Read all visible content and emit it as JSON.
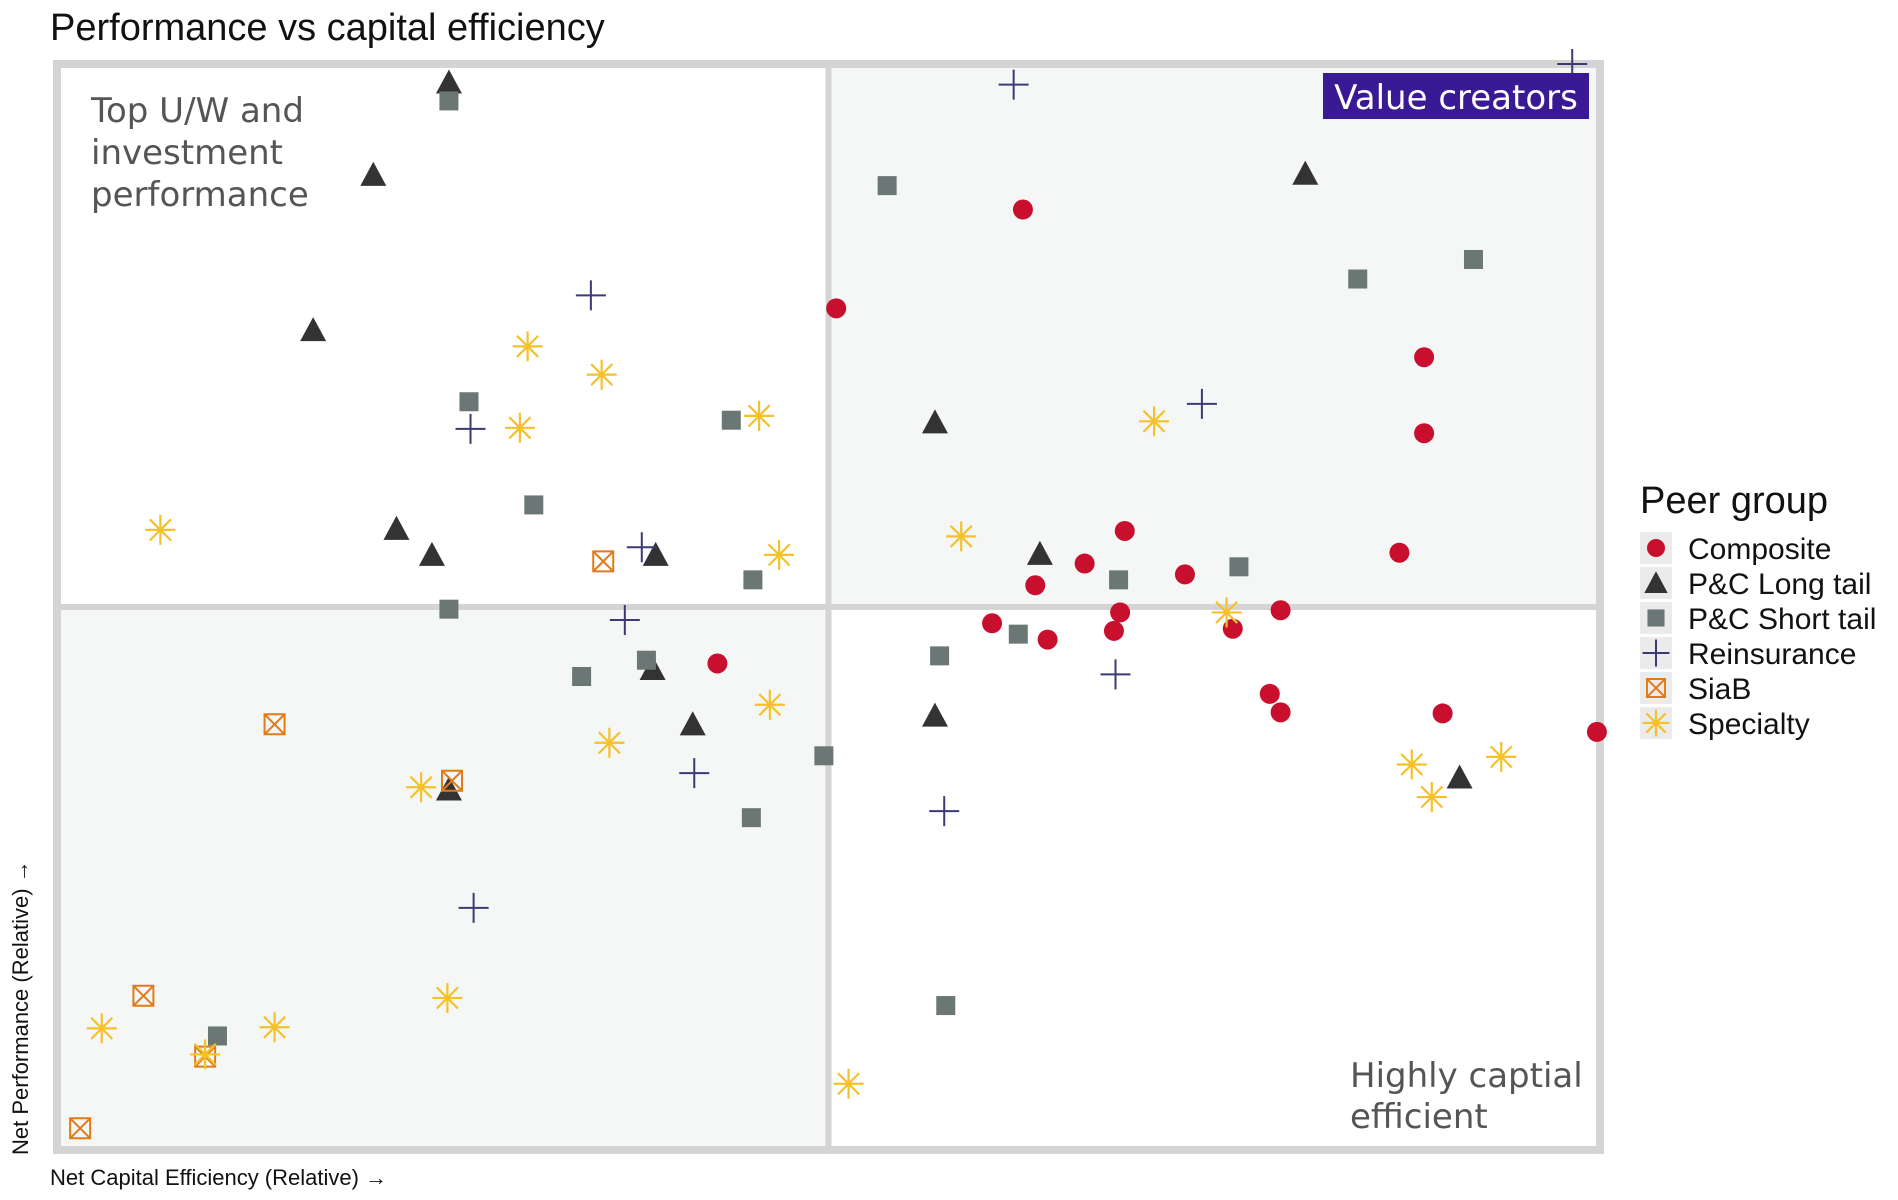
{
  "chart_data": {
    "type": "scatter",
    "title": "Performance vs capital efficiency",
    "xlabel": "Net Capital Efficiency (Relative) →",
    "ylabel": "Net Performance (Relative) →",
    "xlim": [
      0,
      100
    ],
    "ylim": [
      0,
      100
    ],
    "grid": false,
    "legend_position": "right",
    "legend_title": "Peer group",
    "quadrant_labels": {
      "top_left": [
        "Top U/W and",
        "investment",
        "performance"
      ],
      "top_right": "Value creators",
      "bottom_right": [
        "Highly captial",
        "efficient"
      ]
    },
    "colors": {
      "Composite": "#c8102e",
      "P&C Long tail": "#333333",
      "P&C Short tail": "#6b7774",
      "Reinsurance": "#3d3a73",
      "SiaB": "#e07b1a",
      "Specialty": "#f5c02a",
      "badge": "#3a1a94",
      "frame": "#d4d4d4",
      "shade": "#f5f7f6"
    },
    "series": [
      {
        "name": "Composite",
        "marker": "circle",
        "x": [
          50.5,
          62.6,
          60.6,
          69.2,
          63.4,
          64.2,
          66.6,
          68.9,
          68.5,
          73.1,
          76.2,
          79.3,
          78.6,
          79.3,
          87.0,
          88.6,
          88.6,
          89.8,
          99.8,
          42.8
        ],
        "y": [
          77.5,
          86.6,
          48.5,
          57.0,
          52.0,
          47.0,
          54.0,
          49.5,
          47.8,
          53.0,
          48.0,
          49.7,
          42.0,
          40.3,
          55.0,
          66.0,
          73.0,
          40.2,
          38.5,
          44.8
        ]
      },
      {
        "name": "P&C Long tail",
        "marker": "triangle",
        "x": [
          20.5,
          25.4,
          16.6,
          22.0,
          24.3,
          38.8,
          38.6,
          41.2,
          25.4,
          56.9,
          63.7,
          80.9,
          56.9,
          90.9
        ],
        "y": [
          89.8,
          98.3,
          75.5,
          57.2,
          54.8,
          54.8,
          44.3,
          39.2,
          33.2,
          67.0,
          54.9,
          89.9,
          40.0,
          34.3
        ]
      },
      {
        "name": "P&C Short tail",
        "marker": "square",
        "x": [
          25.4,
          53.8,
          26.7,
          30.9,
          43.7,
          45.1,
          25.4,
          34.0,
          38.2,
          49.7,
          57.2,
          62.3,
          68.8,
          76.6,
          84.3,
          91.8,
          45.0,
          57.6,
          10.4
        ],
        "y": [
          96.6,
          88.8,
          68.9,
          59.4,
          67.2,
          52.5,
          49.8,
          43.6,
          45.1,
          36.3,
          45.5,
          47.5,
          52.5,
          53.7,
          80.2,
          82.0,
          30.6,
          13.3,
          10.5
        ]
      },
      {
        "name": "Reinsurance",
        "marker": "plus",
        "x": [
          62.0,
          34.6,
          26.8,
          37.9,
          36.8,
          41.3,
          68.6,
          74.2,
          27.0,
          57.5,
          98.2
        ],
        "y": [
          98.1,
          78.7,
          66.4,
          55.5,
          48.8,
          34.7,
          43.8,
          68.7,
          22.3,
          31.2,
          100.0
        ]
      },
      {
        "name": "SiaB",
        "marker": "boxx",
        "x": [
          35.4,
          14.1,
          25.6,
          5.6,
          9.6,
          1.5
        ],
        "y": [
          54.2,
          39.2,
          34.0,
          14.2,
          8.6,
          2.0
        ]
      },
      {
        "name": "Specialty",
        "marker": "asterisk",
        "x": [
          6.7,
          30.5,
          35.3,
          30.0,
          45.5,
          46.8,
          35.8,
          46.2,
          23.6,
          2.9,
          14.1,
          25.3,
          9.6,
          58.6,
          71.1,
          75.8,
          87.8,
          89.1,
          93.6,
          51.3
        ],
        "y": [
          57.1,
          74.0,
          71.4,
          66.5,
          67.6,
          54.8,
          37.5,
          41.0,
          33.4,
          11.2,
          11.3,
          14.0,
          8.8,
          56.5,
          67.1,
          49.5,
          35.5,
          32.5,
          36.2,
          6.1
        ]
      }
    ]
  }
}
